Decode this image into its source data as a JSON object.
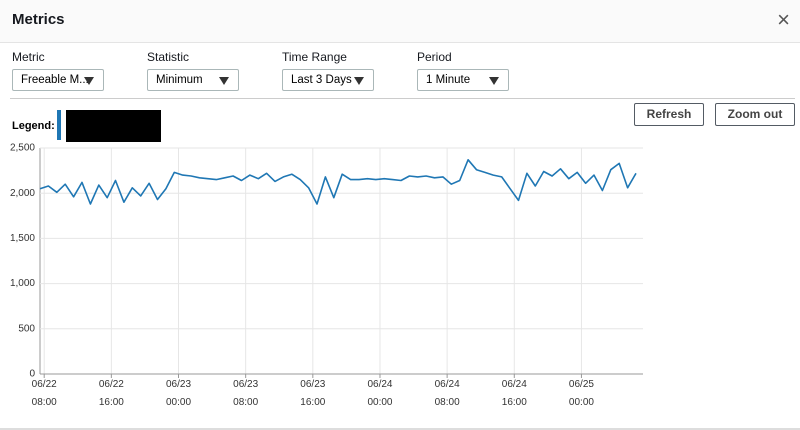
{
  "header": {
    "title": "Metrics",
    "close": "×"
  },
  "controls": [
    {
      "label": "Metric",
      "value": "Freeable M..."
    },
    {
      "label": "Statistic",
      "value": "Minimum"
    },
    {
      "label": "Time Range",
      "value": "Last 3 Days"
    },
    {
      "label": "Period",
      "value": "1 Minute"
    }
  ],
  "buttons": [
    "Refresh",
    "Zoom out"
  ],
  "legend": {
    "label": "Legend:"
  },
  "chart_data": {
    "type": "line",
    "x": [
      "06/22 07:30",
      "06/22 08:30",
      "06/22 09:30",
      "06/22 10:30",
      "06/22 11:30",
      "06/22 12:30",
      "06/22 13:30",
      "06/22 14:30",
      "06/22 15:30",
      "06/22 16:30",
      "06/22 17:30",
      "06/22 18:30",
      "06/22 19:30",
      "06/22 20:30",
      "06/22 21:30",
      "06/22 22:30",
      "06/22 23:30",
      "06/23 00:30",
      "06/23 01:30",
      "06/23 02:30",
      "06/23 03:30",
      "06/23 04:30",
      "06/23 05:30",
      "06/23 06:30",
      "06/23 07:30",
      "06/23 08:30",
      "06/23 09:30",
      "06/23 10:30",
      "06/23 11:30",
      "06/23 12:30",
      "06/23 13:30",
      "06/23 14:30",
      "06/23 15:30",
      "06/23 16:30",
      "06/23 17:30",
      "06/23 18:30",
      "06/23 19:30",
      "06/23 20:30",
      "06/23 21:30",
      "06/23 22:30",
      "06/23 23:30",
      "06/24 00:30",
      "06/24 01:30",
      "06/24 02:30",
      "06/24 03:30",
      "06/24 04:30",
      "06/24 05:30",
      "06/24 06:30",
      "06/24 07:30",
      "06/24 08:30",
      "06/24 09:30",
      "06/24 10:30",
      "06/24 11:30",
      "06/24 12:30",
      "06/24 13:30",
      "06/24 14:30",
      "06/24 15:30",
      "06/24 16:30",
      "06/24 17:30",
      "06/24 18:30",
      "06/24 19:30",
      "06/24 20:30",
      "06/24 21:30",
      "06/24 22:30",
      "06/24 23:30",
      "06/25 00:30",
      "06/25 01:30",
      "06/25 02:30",
      "06/25 03:30",
      "06/25 04:30",
      "06/25 05:30",
      "06/25 06:30"
    ],
    "series": [
      {
        "color": "#1f77b4",
        "values": [
          2050,
          2080,
          2010,
          2100,
          1960,
          2120,
          1880,
          2090,
          1950,
          2140,
          1900,
          2060,
          1970,
          2110,
          1930,
          2050,
          2230,
          2200,
          2190,
          2170,
          2160,
          2150,
          2170,
          2190,
          2140,
          2200,
          2160,
          2220,
          2130,
          2180,
          2210,
          2150,
          2060,
          1880,
          2180,
          1950,
          2210,
          2150,
          2150,
          2160,
          2150,
          2160,
          2150,
          2140,
          2190,
          2180,
          2190,
          2170,
          2180,
          2100,
          2140,
          2370,
          2260,
          2230,
          2200,
          2180,
          2050,
          1920,
          2220,
          2080,
          2240,
          2190,
          2270,
          2160,
          2230,
          2110,
          2200,
          2030,
          2260,
          2330,
          2060,
          2220
        ]
      }
    ],
    "xlim": [
      "06/22 07:30",
      "06/25 07:20"
    ],
    "xticks": [
      {
        "value": "06/22 08:00",
        "label": [
          "06/22",
          "08:00"
        ]
      },
      {
        "value": "06/22 16:00",
        "label": [
          "06/22",
          "16:00"
        ]
      },
      {
        "value": "06/23 00:00",
        "label": [
          "06/23",
          "00:00"
        ]
      },
      {
        "value": "06/23 08:00",
        "label": [
          "06/23",
          "08:00"
        ]
      },
      {
        "value": "06/23 16:00",
        "label": [
          "06/23",
          "16:00"
        ]
      },
      {
        "value": "06/24 00:00",
        "label": [
          "06/24",
          "00:00"
        ]
      },
      {
        "value": "06/24 08:00",
        "label": [
          "06/24",
          "08:00"
        ]
      },
      {
        "value": "06/24 16:00",
        "label": [
          "06/24",
          "16:00"
        ]
      },
      {
        "value": "06/25 00:00",
        "label": [
          "06/25",
          "00:00"
        ]
      }
    ],
    "ylim": [
      0,
      2500
    ],
    "yticks": [
      0,
      500,
      {
        "value": 1000,
        "label": "1,000"
      },
      {
        "value": 1500,
        "label": "1,500"
      },
      {
        "value": 2000,
        "label": "2,000"
      },
      {
        "value": 2500,
        "label": "2,500"
      }
    ],
    "grid": true
  }
}
